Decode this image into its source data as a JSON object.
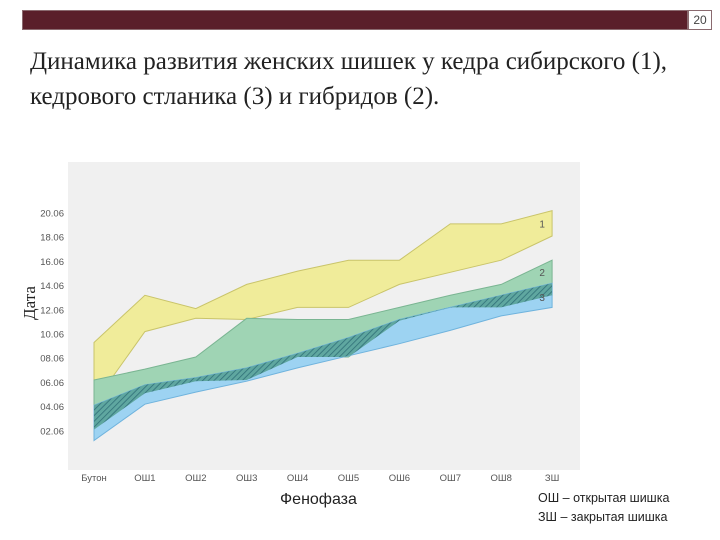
{
  "slide": {
    "number": "20",
    "title": "Динамика развития женских шишек у кедра сибирского (1), кедрового стланика (3) и гибридов (2)."
  },
  "chart_data": {
    "type": "area",
    "ylabel": "Дата",
    "xlabel": "Фенофаза",
    "categories": [
      "Бутон",
      "ОШ1",
      "ОШ2",
      "ОШ3",
      "ОШ4",
      "ОШ5",
      "ОШ6",
      "ОШ7",
      "ОШ8",
      "ЗШ"
    ],
    "y_ticks": [
      "02.06",
      "04.06",
      "06.06",
      "08.06",
      "10.06",
      "12.06",
      "14.06",
      "16.06",
      "18.06",
      "20.06"
    ],
    "y_tick_values": [
      2,
      4,
      6,
      8,
      10,
      12,
      14,
      16,
      18,
      20
    ],
    "ylim": [
      0,
      21
    ],
    "series": [
      {
        "name": "1",
        "color": "#f0ec9a",
        "stroke": "#c9c46a",
        "upper": [
          9.3,
          13.2,
          12.1,
          14.1,
          15.2,
          16.1,
          16.1,
          19.1,
          19.1,
          20.2
        ],
        "lower": [
          4.3,
          10.2,
          11.3,
          11.2,
          12.2,
          12.2,
          14.1,
          15.1,
          16.1,
          18.1
        ]
      },
      {
        "name": "2",
        "color": "#9fd4b4",
        "stroke": "#7ab592",
        "upper": [
          6.2,
          7.1,
          8.1,
          11.3,
          11.2,
          11.2,
          12.2,
          13.2,
          14.1,
          16.1
        ],
        "lower": [
          2.1,
          5.1,
          6.1,
          6.2,
          8.1,
          8.1,
          11.1,
          12.2,
          12.2,
          13.2
        ]
      },
      {
        "name": "3",
        "color": "#9dd3f2",
        "stroke": "#6fb3dd",
        "upper": [
          4.1,
          5.8,
          6.4,
          7.2,
          8.4,
          9.7,
          11.2,
          12.2,
          13.2,
          14.2
        ],
        "lower": [
          1.2,
          4.2,
          5.2,
          6.1,
          7.2,
          8.2,
          9.2,
          10.3,
          11.5,
          12.2
        ]
      }
    ],
    "legend": "labels at right end of each band",
    "grid": false
  },
  "notes": [
    "ОШ – открытая шишка",
    "ЗШ – закрытая шишка"
  ]
}
